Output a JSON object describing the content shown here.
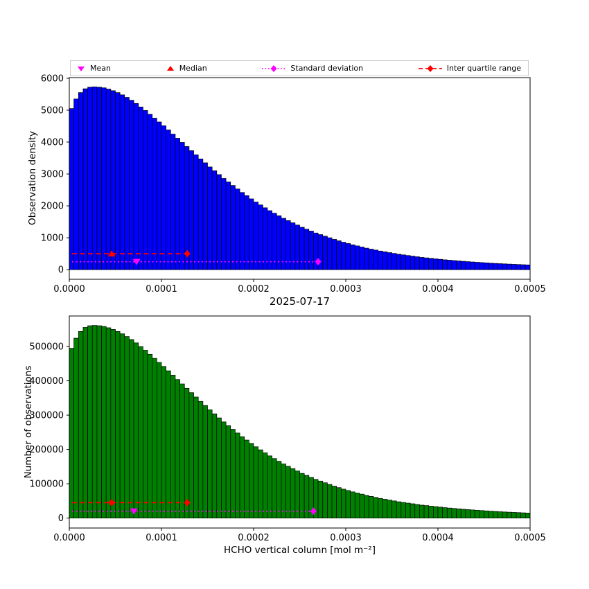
{
  "figure": {
    "title": "2025-07-17",
    "background": "#ffffff"
  },
  "legend": {
    "items": [
      {
        "label": "Mean",
        "marker": "triangle-down",
        "color": "#ff00ff"
      },
      {
        "label": "Median",
        "marker": "triangle-up",
        "color": "#ff0000"
      },
      {
        "label": "Standard deviation",
        "marker": "diamond-on-dotted-line",
        "color": "#ff00ff"
      },
      {
        "label": "Inter quartile range",
        "marker": "diamond-on-dashed-line",
        "color": "#ff0000"
      }
    ]
  },
  "chart_data": [
    {
      "type": "bar",
      "subtype": "histogram",
      "title": "2025-07-17",
      "ylabel": "Observation density",
      "xlabel": "",
      "bar_color": "#0000ff",
      "edge_color": "#000000",
      "bin_start": 0,
      "bin_width": 5e-06,
      "xlim": [
        0,
        0.0005
      ],
      "ylim": [
        -300,
        6020
      ],
      "xtick_values": [
        0,
        0.0001,
        0.0002,
        0.0003,
        0.0004,
        0.0005
      ],
      "xtick_labels": [
        "0.0000",
        "0.0001",
        "0.0002",
        "0.0003",
        "0.0004",
        "0.0005"
      ],
      "ytick_values": [
        0,
        1000,
        2000,
        3000,
        4000,
        5000,
        6000
      ],
      "ytick_labels": [
        "0",
        "1000",
        "2000",
        "3000",
        "4000",
        "5000",
        "6000"
      ],
      "values": [
        5050,
        5350,
        5550,
        5670,
        5720,
        5730,
        5720,
        5700,
        5660,
        5610,
        5550,
        5480,
        5400,
        5310,
        5210,
        5100,
        4990,
        4870,
        4750,
        4630,
        4510,
        4380,
        4250,
        4120,
        3990,
        3860,
        3730,
        3600,
        3470,
        3350,
        3220,
        3100,
        2980,
        2860,
        2750,
        2640,
        2530,
        2420,
        2320,
        2220,
        2120,
        2030,
        1940,
        1850,
        1770,
        1690,
        1610,
        1540,
        1470,
        1400,
        1330,
        1270,
        1210,
        1150,
        1100,
        1050,
        1000,
        950,
        905,
        860,
        820,
        780,
        745,
        710,
        675,
        645,
        615,
        585,
        560,
        535,
        510,
        485,
        465,
        445,
        425,
        405,
        385,
        370,
        355,
        340,
        325,
        310,
        298,
        286,
        274,
        263,
        252,
        242,
        232,
        223,
        214,
        205,
        197,
        189,
        182,
        175,
        168,
        162,
        156,
        150
      ],
      "overlays": [
        {
          "type": "line",
          "name": "std-deviation-line",
          "color": "#ff00ff",
          "dash": "dotted",
          "y": 250,
          "x0": 3e-06,
          "x1": 0.00027
        },
        {
          "type": "marker",
          "name": "std-deviation-marker",
          "shape": "diamond",
          "color": "#ff00ff",
          "x": 0.00027,
          "y": 250
        },
        {
          "type": "marker",
          "name": "mean-marker",
          "shape": "triangle-down",
          "color": "#ff00ff",
          "x": 7.3e-05,
          "y": 250
        },
        {
          "type": "line",
          "name": "iqr-line",
          "color": "#ff0000",
          "dash": "dashed",
          "y": 500,
          "x0": 3e-06,
          "x1": 0.000128
        },
        {
          "type": "marker",
          "name": "iqr-q3-marker",
          "shape": "diamond",
          "color": "#ff0000",
          "x": 0.000128,
          "y": 500
        },
        {
          "type": "marker",
          "name": "median-marker",
          "shape": "triangle-up",
          "color": "#ff0000",
          "x": 4.6e-05,
          "y": 500
        }
      ]
    },
    {
      "type": "bar",
      "subtype": "histogram",
      "title": "",
      "ylabel": "Number of observations",
      "xlabel": "HCHO vertical column [mol m⁻²]",
      "bar_color": "#008000",
      "edge_color": "#000000",
      "bin_start": 0,
      "bin_width": 5e-06,
      "xlim": [
        0,
        0.0005
      ],
      "ylim": [
        -29000,
        589000
      ],
      "xtick_values": [
        0,
        0.0001,
        0.0002,
        0.0003,
        0.0004,
        0.0005
      ],
      "xtick_labels": [
        "0.0000",
        "0.0001",
        "0.0002",
        "0.0003",
        "0.0004",
        "0.0005"
      ],
      "ytick_values": [
        0,
        100000,
        200000,
        300000,
        400000,
        500000
      ],
      "ytick_labels": [
        "0",
        "100000",
        "200000",
        "300000",
        "400000",
        "500000"
      ],
      "values": [
        494900,
        524300,
        543900,
        555700,
        560600,
        561500,
        560600,
        558600,
        554700,
        549800,
        543900,
        537000,
        529200,
        520400,
        510600,
        499800,
        489000,
        477300,
        465500,
        453700,
        442000,
        429200,
        416500,
        403800,
        391000,
        378300,
        365500,
        352800,
        340100,
        328300,
        315600,
        303800,
        292000,
        280300,
        269500,
        258700,
        247900,
        237200,
        227400,
        217600,
        207800,
        198900,
        190100,
        181300,
        173500,
        165600,
        157800,
        150900,
        144100,
        137200,
        130300,
        124500,
        118600,
        112700,
        107800,
        102900,
        98000,
        93100,
        88700,
        84300,
        80400,
        76400,
        73000,
        69600,
        66200,
        63200,
        60300,
        57300,
        54900,
        52400,
        50000,
        47500,
        45600,
        43600,
        41700,
        39700,
        37700,
        36300,
        34800,
        33300,
        31900,
        30400,
        29200,
        28000,
        26900,
        25800,
        24700,
        23700,
        22700,
        21900,
        21000,
        20100,
        19300,
        18500,
        17800,
        17200,
        16500,
        15900,
        15300,
        14700
      ],
      "overlays": [
        {
          "type": "line",
          "name": "std-deviation-line",
          "color": "#ff00ff",
          "dash": "dotted",
          "y": 20000,
          "x0": 3e-06,
          "x1": 0.000265
        },
        {
          "type": "marker",
          "name": "std-deviation-marker",
          "shape": "diamond",
          "color": "#ff00ff",
          "x": 0.000265,
          "y": 20000
        },
        {
          "type": "marker",
          "name": "mean-marker",
          "shape": "triangle-down",
          "color": "#ff00ff",
          "x": 7e-05,
          "y": 20000
        },
        {
          "type": "line",
          "name": "iqr-line",
          "color": "#ff0000",
          "dash": "dashed",
          "y": 45000,
          "x0": 3e-06,
          "x1": 0.000128
        },
        {
          "type": "marker",
          "name": "iqr-q1-marker",
          "shape": "diamond",
          "color": "#ff0000",
          "x": 4.6e-05,
          "y": 45000
        },
        {
          "type": "marker",
          "name": "iqr-q3-marker",
          "shape": "diamond",
          "color": "#ff0000",
          "x": 0.000128,
          "y": 45000
        }
      ]
    }
  ]
}
